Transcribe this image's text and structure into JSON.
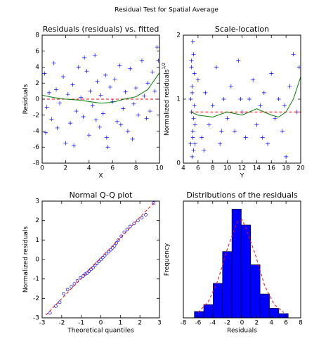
{
  "title": "Residual Test for Spatial Average",
  "chart_data": [
    {
      "type": "scatter",
      "title": "Residuals (residuals) vs. fitted",
      "xlabel": "X",
      "ylabel": "Residuals",
      "xlim": [
        0,
        10
      ],
      "xticks": [
        0,
        2,
        4,
        6,
        8,
        10
      ],
      "ylim": [
        -8,
        8
      ],
      "yticks": [
        -8,
        -6,
        -4,
        -2,
        0,
        2,
        4,
        6,
        8
      ],
      "marker_color": "#0000ff",
      "points": {
        "x": [
          0.2,
          0.4,
          0.6,
          0.8,
          1.0,
          1.2,
          1.5,
          1.8,
          2.0,
          2.2,
          2.4,
          2.6,
          2.9,
          3.1,
          3.3,
          3.5,
          3.8,
          4.0,
          4.1,
          4.3,
          4.5,
          4.7,
          4.9,
          5.0,
          5.2,
          5.4,
          5.6,
          5.8,
          6.0,
          6.2,
          6.4,
          6.6,
          6.9,
          7.1,
          7.3,
          7.5,
          7.8,
          8.0,
          8.2,
          8.5,
          8.7,
          9.0,
          9.2,
          9.4,
          9.6,
          9.8,
          9.9,
          0.3,
          1.3,
          2.7,
          3.6,
          4.6,
          5.5,
          6.7,
          7.7,
          8.9
        ],
        "y": [
          3.2,
          -1.0,
          0.8,
          -2.5,
          4.5,
          1.2,
          -0.5,
          2.8,
          -5.5,
          0.6,
          -3.0,
          1.8,
          -1.5,
          4.0,
          0.2,
          -2.2,
          3.5,
          -4.5,
          1.0,
          -0.8,
          5.5,
          2.2,
          -3.5,
          0.5,
          -1.8,
          3.0,
          -6.0,
          1.5,
          -0.3,
          2.5,
          -2.8,
          4.2,
          -1.2,
          0.9,
          -4.0,
          3.8,
          -0.6,
          1.4,
          -2.0,
          4.8,
          0.4,
          2.0,
          -1.5,
          3.4,
          1.0,
          6.5,
          4.8,
          -4.2,
          -3.6,
          -5.8,
          5.2,
          -2.6,
          -4.8,
          -3.2,
          -5.0,
          -2.4
        ]
      },
      "lines": [
        {
          "color": "#ff0000",
          "dash": true,
          "x": [
            0,
            10
          ],
          "y": [
            0,
            0
          ]
        },
        {
          "color": "#008000",
          "dash": false,
          "x": [
            0,
            1,
            2,
            3,
            4,
            5,
            6,
            7,
            8,
            9,
            10
          ],
          "y": [
            0.5,
            0.2,
            0,
            -0.1,
            -0.3,
            -0.5,
            -0.4,
            0,
            0.3,
            1.2,
            3.3
          ]
        }
      ]
    },
    {
      "type": "scatter",
      "title": "Scale-location",
      "xlabel": "Y",
      "ylabel": "Normalized residuals",
      "ylabel_superscript": "1/2",
      "xlim": [
        4,
        20
      ],
      "xticks": [
        4,
        6,
        8,
        10,
        12,
        14,
        16,
        18,
        20
      ],
      "ylim": [
        0,
        2
      ],
      "yticks": [
        0,
        1,
        2
      ],
      "marker_color": "#0000ff",
      "points": {
        "x": [
          5.0,
          5.1,
          5.1,
          5.2,
          5.2,
          5.3,
          5.3,
          5.4,
          5.4,
          5.5,
          5.5,
          5.6,
          5.0,
          5.2,
          5.3,
          5.4,
          5.6,
          5.1,
          6.0,
          6.5,
          7.0,
          7.5,
          8.0,
          8.5,
          9.0,
          9.5,
          10.0,
          10.5,
          11.0,
          11.5,
          12.0,
          12.5,
          13.0,
          13.5,
          14.0,
          14.5,
          15.0,
          15.5,
          16.0,
          16.5,
          17.0,
          17.5,
          18.0,
          18.5,
          19.0,
          19.5,
          19.8,
          6.8,
          9.2,
          11.8,
          14.8,
          17.8
        ],
        "y": [
          0.3,
          1.6,
          0.8,
          0.1,
          1.2,
          0.5,
          1.9,
          0.7,
          0.2,
          1.4,
          0.9,
          0.6,
          1.0,
          1.1,
          0.4,
          1.7,
          0.3,
          1.5,
          1.3,
          0.4,
          1.1,
          0.6,
          0.9,
          1.5,
          0.3,
          1.0,
          0.7,
          1.2,
          0.5,
          1.6,
          0.8,
          0.4,
          1.0,
          1.3,
          0.6,
          0.9,
          1.1,
          0.3,
          1.4,
          0.7,
          1.0,
          0.5,
          0.1,
          1.2,
          1.7,
          0.8,
          1.5,
          0.2,
          0.5,
          1.0,
          0.4,
          0.9
        ]
      },
      "lines": [
        {
          "color": "#ff0000",
          "dash": true,
          "x": [
            5,
            20
          ],
          "y": [
            0.8,
            0.8
          ]
        },
        {
          "color": "#008000",
          "dash": false,
          "x": [
            5,
            6,
            8,
            10,
            12,
            14,
            16,
            17,
            18,
            19,
            20
          ],
          "y": [
            0.8,
            0.75,
            0.72,
            0.8,
            0.75,
            0.85,
            0.75,
            0.72,
            0.8,
            1.0,
            1.35
          ]
        }
      ]
    },
    {
      "type": "qq",
      "title": "Normal Q-Q plot",
      "xlabel": "Theoretical quantiles",
      "ylabel": "Normalized residuals",
      "xlim": [
        -3,
        3
      ],
      "xticks": [
        -3,
        -2,
        -1,
        0,
        1,
        2,
        3
      ],
      "ylim": [
        -3,
        3
      ],
      "yticks": [
        -3,
        -2,
        -1,
        0,
        1,
        2,
        3
      ],
      "marker_color": "#0000ff",
      "points": {
        "x": [
          -2.6,
          -2.3,
          -2.1,
          -1.9,
          -1.7,
          -1.5,
          -1.35,
          -1.2,
          -1.05,
          -0.9,
          -0.8,
          -0.7,
          -0.6,
          -0.5,
          -0.4,
          -0.3,
          -0.2,
          -0.1,
          0,
          0.1,
          0.2,
          0.3,
          0.4,
          0.5,
          0.6,
          0.7,
          0.8,
          0.9,
          1.05,
          1.2,
          1.35,
          1.5,
          1.7,
          1.9,
          2.1,
          2.3,
          2.7
        ],
        "y": [
          -2.75,
          -2.4,
          -2.2,
          -1.75,
          -1.55,
          -1.4,
          -1.25,
          -1.1,
          -0.95,
          -0.85,
          -0.75,
          -0.7,
          -0.6,
          -0.5,
          -0.42,
          -0.3,
          -0.2,
          -0.1,
          0,
          0.1,
          0.2,
          0.3,
          0.4,
          0.5,
          0.6,
          0.7,
          0.85,
          1.0,
          1.2,
          1.4,
          1.55,
          1.7,
          1.85,
          2.0,
          2.15,
          2.3,
          2.9
        ]
      },
      "lines": [
        {
          "color": "#ff0000",
          "dash": true,
          "x": [
            -2.8,
            2.8
          ],
          "y": [
            -2.85,
            3.0
          ]
        }
      ]
    },
    {
      "type": "histogram",
      "title": "Distributions of the residuals",
      "xlabel": "Residuals",
      "ylabel": "Frequency",
      "xlim": [
        -8,
        8
      ],
      "xticks": [
        -8,
        -6,
        -4,
        -2,
        0,
        2,
        4,
        6,
        8
      ],
      "ylim": [
        0,
        0.22
      ],
      "color": "#0000ff",
      "bins": [
        -6.5,
        -5.22,
        -3.94,
        -2.66,
        -1.38,
        -0.1,
        1.18,
        2.46,
        3.74,
        5.02,
        6.3
      ],
      "values": [
        0.012,
        0.025,
        0.065,
        0.125,
        0.205,
        0.175,
        0.1,
        0.045,
        0.018,
        0.008
      ],
      "lines": [
        {
          "color": "#ff0000",
          "dash": true,
          "x": [
            -6,
            -4.6,
            -3.3,
            -2,
            -0.7,
            0,
            0.5,
            1.8,
            3.1,
            4.4,
            5.7
          ],
          "y": [
            0.01,
            0.03,
            0.07,
            0.13,
            0.18,
            0.185,
            0.17,
            0.12,
            0.06,
            0.025,
            0.01
          ]
        }
      ]
    }
  ]
}
